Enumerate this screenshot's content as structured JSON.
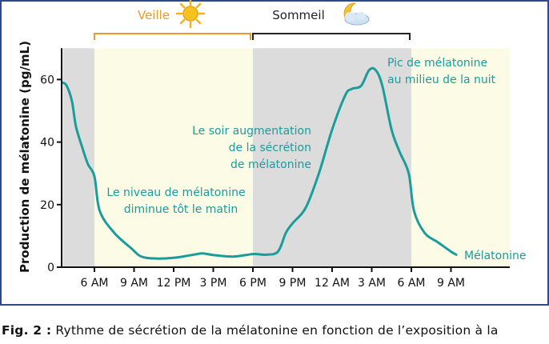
{
  "colors": {
    "wake_band": "#fcfbe6",
    "sleep_band": "#dcdcdc",
    "curve": "#1a9c9b",
    "annotation": "#1a9c9b",
    "veille": "#e89a2c",
    "sommeil": "#222222",
    "axis": "#111111",
    "frame": "#2e4a8c"
  },
  "labels": {
    "veille": "Veille",
    "sommeil": "Sommeil",
    "sun_icon": "sun-icon",
    "moon_icon": "moon-cloud-icon"
  },
  "annotations": {
    "morning_1": "Le niveau de mélatonine",
    "morning_2": "diminue tôt le matin",
    "evening_1": "Le soir augmentation",
    "evening_2": "de la sécrétion",
    "evening_3": "de mélatonine",
    "peak_1": "Pic de mélatonine",
    "peak_2": "au milieu de la nuit"
  },
  "caption": {
    "label": "Fig. 2 :",
    "text": "Rythme de sécrétion de la mélatonine en fonction de l’exposition à la"
  },
  "chart_data": {
    "type": "line",
    "title": "",
    "xlabel": "",
    "ylabel": "Production de mélatonine (pg/mL)",
    "ylim": [
      0,
      70
    ],
    "xlim": [
      -6,
      34
    ],
    "yticks": [
      0,
      20,
      40,
      60
    ],
    "xticks": [
      {
        "h": 0,
        "label": "6 AM"
      },
      {
        "h": 3,
        "label": "9 AM"
      },
      {
        "h": 6,
        "label": "12 PM"
      },
      {
        "h": 9,
        "label": "3 PM"
      },
      {
        "h": 12,
        "label": "6 PM"
      },
      {
        "h": 15,
        "label": "9 PM"
      },
      {
        "h": 18,
        "label": "12 AM"
      },
      {
        "h": 21,
        "label": "3 AM"
      },
      {
        "h": 24,
        "label": "6 AM"
      },
      {
        "h": 27,
        "label": "9 AM"
      }
    ],
    "x_unit": "hours after 6 AM",
    "bands": [
      {
        "from": -2.4,
        "to": 0,
        "kind": "sleep"
      },
      {
        "from": 0,
        "to": 12,
        "kind": "wake"
      },
      {
        "from": 12,
        "to": 24,
        "kind": "sleep"
      },
      {
        "from": 24,
        "to": 31.5,
        "kind": "wake"
      }
    ],
    "series": [
      {
        "name": "Mélatonine",
        "x": [
          -2.4,
          -2.1,
          -1.7,
          -1.4,
          -0.9,
          -0.5,
          0,
          0.4,
          1.5,
          2.8,
          3.5,
          4.5,
          6,
          7.5,
          8.2,
          9,
          10.5,
          12,
          13,
          13.9,
          14.5,
          15,
          16,
          17,
          18,
          19,
          19.5,
          20.2,
          20.8,
          21.3,
          21.8,
          22.5,
          23.1,
          23.8,
          24.2,
          25,
          26,
          27,
          27.4
        ],
        "y": [
          59,
          58,
          53,
          45,
          38,
          33,
          29,
          18,
          11,
          6,
          3.5,
          2.8,
          3,
          4,
          4.4,
          3.9,
          3.4,
          4.2,
          4,
          5,
          11,
          14,
          19,
          30,
          44,
          55,
          57,
          58,
          63,
          63,
          58,
          44,
          37,
          30,
          18,
          11,
          8,
          5,
          4
        ]
      }
    ]
  }
}
